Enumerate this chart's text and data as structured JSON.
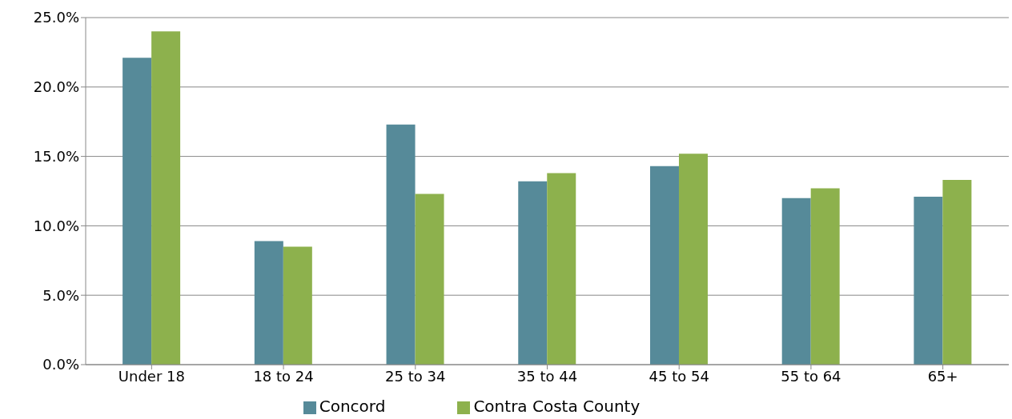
{
  "chart_data": {
    "type": "bar",
    "categories": [
      "Under 18",
      "18 to 24",
      "25 to 34",
      "35 to 44",
      "45 to 54",
      "55 to 64",
      "65+"
    ],
    "series": [
      {
        "name": "Concord",
        "color": "#568a99",
        "values": [
          22.1,
          8.9,
          17.3,
          13.2,
          14.3,
          12.0,
          12.1
        ]
      },
      {
        "name": "Contra Costa County",
        "color": "#8db14d",
        "values": [
          24.0,
          8.5,
          12.3,
          13.8,
          15.2,
          12.7,
          13.3
        ]
      }
    ],
    "ylim": [
      0,
      25
    ],
    "yticks": [
      {
        "value": 0,
        "label": "0.0%"
      },
      {
        "value": 5,
        "label": "5.0%"
      },
      {
        "value": 10,
        "label": "10.0%"
      },
      {
        "value": 15,
        "label": "15.0%"
      },
      {
        "value": 20,
        "label": "20.0%"
      },
      {
        "value": 25,
        "label": "25.0%"
      }
    ],
    "grid": "y",
    "legend": "bottom"
  }
}
